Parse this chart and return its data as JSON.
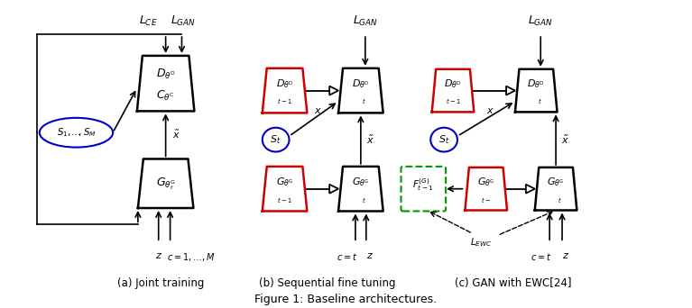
{
  "title": "Figure 1: Baseline architectures.",
  "bg_color": "#ffffff",
  "sub_labels": [
    "(a) Joint training",
    "(b) Sequential fine tuning",
    "(c) GAN with EWC[24]"
  ],
  "box_color_black": "#000000",
  "box_color_red": "#cc0000",
  "box_color_blue": "#0000cc",
  "box_color_green_dashed": "#009900"
}
